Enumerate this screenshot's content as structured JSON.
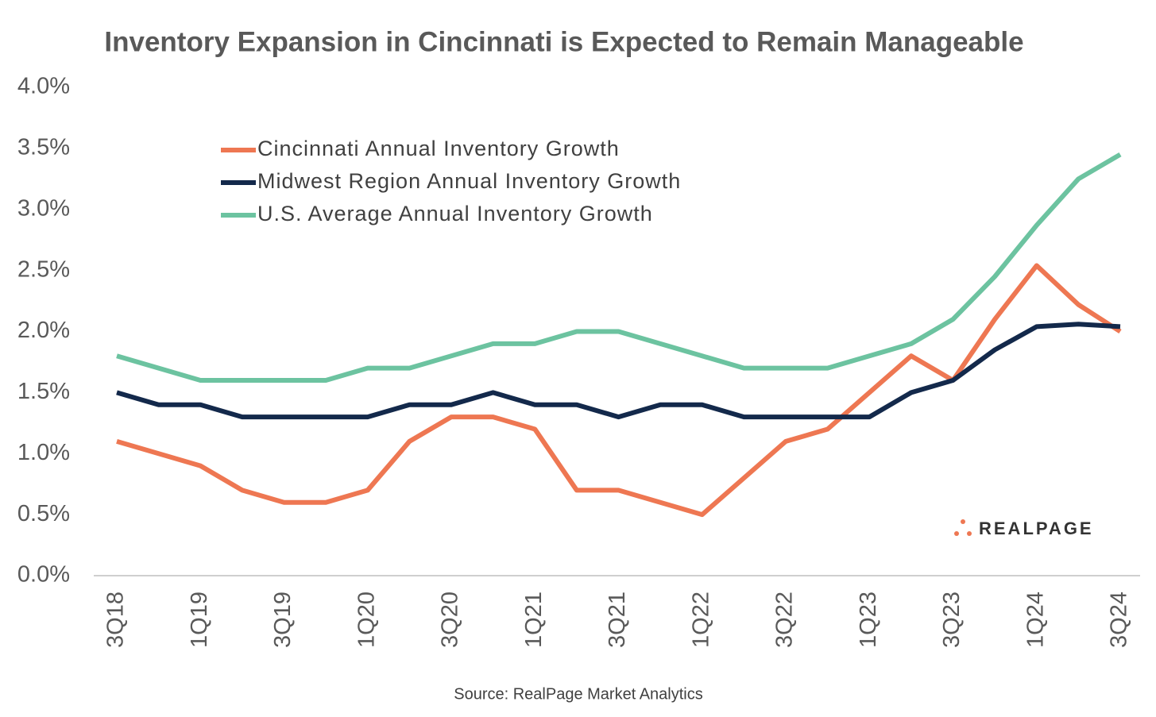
{
  "chart_data": {
    "type": "line",
    "title": "Inventory Expansion in Cincinnati is Expected to Remain Manageable",
    "source": "Source: RealPage Market Analytics",
    "logo": "REALPAGE",
    "categories": [
      "3Q18",
      null,
      "1Q19",
      null,
      "3Q19",
      null,
      "1Q20",
      null,
      "3Q20",
      null,
      "1Q21",
      null,
      "3Q21",
      null,
      "1Q22",
      null,
      "3Q22",
      null,
      "1Q23",
      null,
      "3Q23",
      null,
      "1Q24",
      null,
      "3Q24"
    ],
    "series": [
      {
        "name": "Cincinnati Annual Inventory Growth",
        "color": "#ee7752",
        "values": [
          1.1,
          1.0,
          0.9,
          0.7,
          0.6,
          0.6,
          0.7,
          1.1,
          1.3,
          1.3,
          1.2,
          0.7,
          0.7,
          0.6,
          0.5,
          0.8,
          1.1,
          1.2,
          1.5,
          1.8,
          1.6,
          2.1,
          2.54,
          2.22,
          2.0
        ]
      },
      {
        "name": "Midwest Region Annual Inventory Growth",
        "color": "#13294b",
        "values": [
          1.5,
          1.4,
          1.4,
          1.3,
          1.3,
          1.3,
          1.3,
          1.4,
          1.4,
          1.5,
          1.4,
          1.4,
          1.3,
          1.4,
          1.4,
          1.3,
          1.3,
          1.3,
          1.3,
          1.5,
          1.6,
          1.85,
          2.04,
          2.06,
          2.04
        ]
      },
      {
        "name": "U.S. Average Annual Inventory Growth",
        "color": "#6cc3a0",
        "values": [
          1.8,
          1.7,
          1.6,
          1.6,
          1.6,
          1.6,
          1.7,
          1.7,
          1.8,
          1.9,
          1.9,
          2.0,
          2.0,
          1.9,
          1.8,
          1.7,
          1.7,
          1.7,
          1.8,
          1.9,
          2.1,
          2.45,
          2.87,
          3.25,
          3.45
        ]
      }
    ],
    "ylim": [
      0,
      4
    ],
    "yticks": [
      {
        "value": 0,
        "label": "0.0%"
      },
      {
        "value": 0.5,
        "label": "0.5%"
      },
      {
        "value": 1,
        "label": "1.0%"
      },
      {
        "value": 1.5,
        "label": "1.5%"
      },
      {
        "value": 2,
        "label": "2.0%"
      },
      {
        "value": 2.5,
        "label": "2.5%"
      },
      {
        "value": 3,
        "label": "3.0%"
      },
      {
        "value": 3.5,
        "label": "3.5%"
      },
      {
        "value": 4,
        "label": "4.0%"
      }
    ],
    "grid": false,
    "legend": "upper-left"
  }
}
